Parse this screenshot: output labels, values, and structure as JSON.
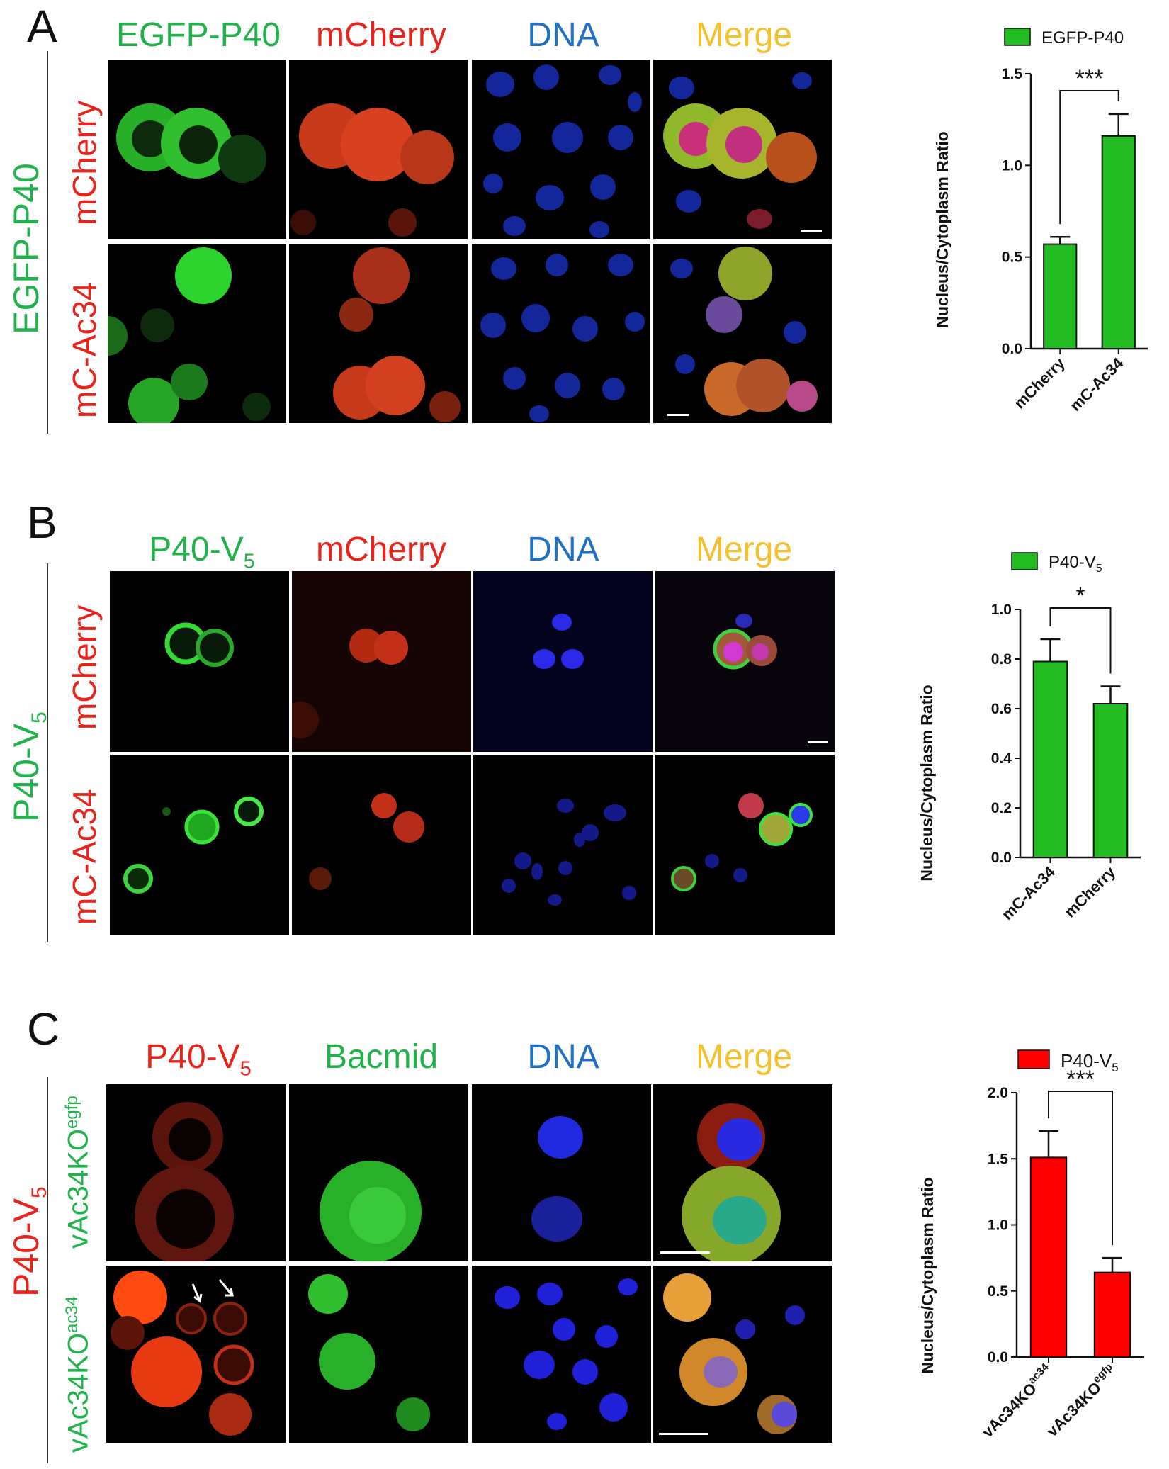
{
  "panels": [
    {
      "letter": "A",
      "side_label": "EGFP-P40",
      "columns": [
        "EGFP-P40",
        "mCherry",
        "DNA",
        "Merge"
      ],
      "rows": [
        "mCherry",
        "mC-Ac34"
      ]
    },
    {
      "letter": "B",
      "side_label": "P40-V",
      "side_label_sub": "5",
      "columns": [
        "P40-V",
        "mCherry",
        "DNA",
        "Merge"
      ],
      "column_sub": "5",
      "rows": [
        "mCherry",
        "mC-Ac34"
      ]
    },
    {
      "letter": "C",
      "side_label": "P40-V",
      "side_label_sub": "5",
      "columns": [
        "P40-V",
        "Bacmid",
        "DNA",
        "Merge"
      ],
      "column_sub": "5",
      "rows": [
        "vAc34KO",
        "vAc34KO"
      ],
      "row_sups": [
        "egfp",
        "ac34"
      ]
    }
  ],
  "colors": {
    "green": "#22b24c",
    "red": "#e8231b",
    "blue": "#1f6fc4",
    "gold": "#f4c02c",
    "bar_green": "#22bb22",
    "bar_red": "#ff0000"
  },
  "chart_data": [
    {
      "type": "bar",
      "legend": "EGFP-P40",
      "ylabel": "Nucleus/Cytoplasm Ratio",
      "categories": [
        "mCherry",
        "mC-Ac34"
      ],
      "values": [
        0.57,
        1.16
      ],
      "errors": [
        0.04,
        0.12
      ],
      "ylim": [
        0,
        1.5
      ],
      "yticks": [
        "0.0",
        "0.5",
        "1.0",
        "1.5"
      ],
      "significance": "***"
    },
    {
      "type": "bar",
      "legend": "P40-V",
      "legend_sub": "5",
      "ylabel": "Nucleus/Cytoplasm Ratio",
      "categories": [
        "mC-Ac34",
        "mCherry"
      ],
      "values": [
        0.79,
        0.62
      ],
      "errors": [
        0.09,
        0.07
      ],
      "ylim": [
        0,
        1.0
      ],
      "yticks": [
        "0.0",
        "0.2",
        "0.4",
        "0.6",
        "0.8",
        "1.0"
      ],
      "significance": "*"
    },
    {
      "type": "bar",
      "legend": "P40-V",
      "legend_sub": "5",
      "ylabel": "Nucleus/Cytoplasm Ratio",
      "categories": [
        "vAc34KO",
        "vAc34KO"
      ],
      "category_sups": [
        "ac34",
        "egfp"
      ],
      "values": [
        1.51,
        0.64
      ],
      "errors": [
        0.2,
        0.11
      ],
      "ylim": [
        0,
        2.0
      ],
      "yticks": [
        "0.0",
        "0.5",
        "1.0",
        "1.5",
        "2.0"
      ],
      "significance": "***"
    }
  ]
}
